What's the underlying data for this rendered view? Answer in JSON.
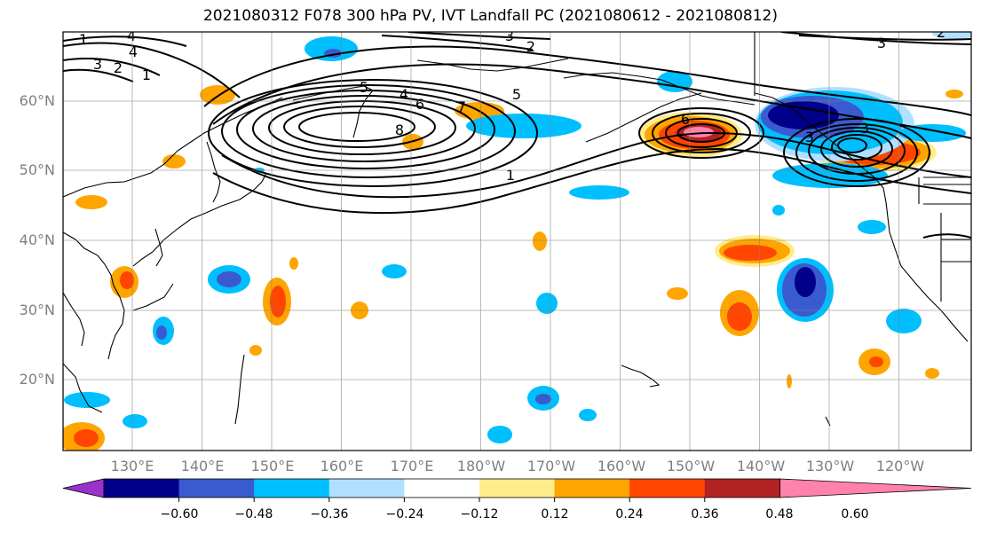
{
  "title": "2021080312 F078 300 hPa PV, IVT Landfall PC (2021080612 - 2021080812)",
  "map": {
    "lat_labels": [
      "60°N",
      "50°N",
      "40°N",
      "30°N",
      "20°N"
    ],
    "lon_labels": [
      "130°E",
      "140°E",
      "150°E",
      "160°E",
      "170°E",
      "180°W",
      "170°W",
      "160°W",
      "150°W",
      "140°W",
      "130°W",
      "120°W"
    ],
    "contour_labels": [
      "1",
      "2",
      "3",
      "4",
      "5",
      "6",
      "7",
      "8",
      "1",
      "2",
      "3",
      "4",
      "5",
      "6",
      "1",
      "2",
      "3",
      "3",
      "3",
      "4"
    ]
  },
  "colorbar": {
    "colors": [
      "#9932CC",
      "#00008B",
      "#3A5BCF",
      "#00BFFF",
      "#B0E0FF",
      "#FFFFFF",
      "#FFEC8B",
      "#FFA500",
      "#FF4500",
      "#B22222",
      "#FF82AB"
    ],
    "tick_labels": [
      "−0.60",
      "−0.48",
      "−0.36",
      "−0.24",
      "−0.12",
      "0.12",
      "0.24",
      "0.36",
      "0.48",
      "0.60"
    ]
  }
}
